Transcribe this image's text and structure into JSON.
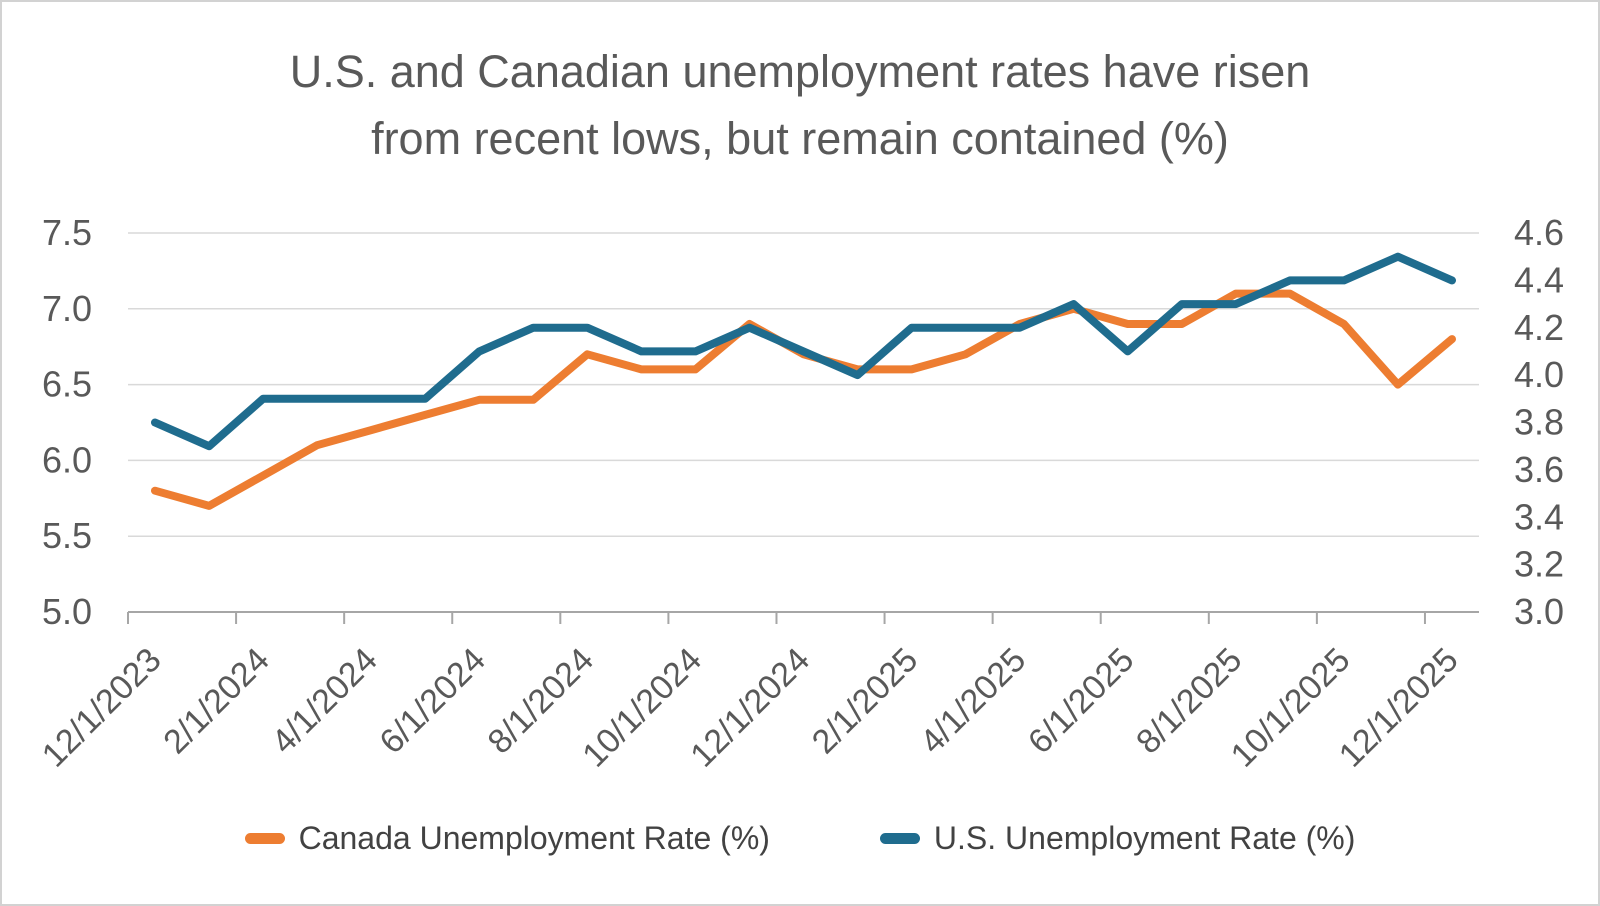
{
  "title": {
    "line1": "U.S. and Canadian unemployment rates have risen",
    "line2": "from recent lows, but remain contained (%)"
  },
  "colors": {
    "canada_line": "#ED7D31",
    "us_line": "#1F6C8E",
    "title_text": "#595959",
    "axis_text": "#595959",
    "gridline": "#D9D9D9",
    "axis_line": "#A6A6A6",
    "legend_text": "#424242",
    "background": "#FFFFFF"
  },
  "legend": {
    "items": [
      {
        "label": "Canada Unemployment Rate (%)",
        "color": "#ED7D31"
      },
      {
        "label": "U.S. Unemployment Rate (%)",
        "color": "#1F6C8E"
      }
    ]
  },
  "chart_data": {
    "type": "line",
    "x": [
      "12/1/2023",
      "1/1/2024",
      "2/1/2024",
      "3/1/2024",
      "4/1/2024",
      "5/1/2024",
      "6/1/2024",
      "7/1/2024",
      "8/1/2024",
      "9/1/2024",
      "10/1/2024",
      "11/1/2024",
      "12/1/2024",
      "1/1/2025",
      "2/1/2025",
      "3/1/2025",
      "4/1/2025",
      "5/1/2025",
      "6/1/2025",
      "7/1/2025",
      "8/1/2025",
      "9/1/2025",
      "10/1/2025",
      "11/1/2025",
      "12/1/2025"
    ],
    "x_tick_labels": [
      "12/1/2023",
      "2/1/2024",
      "4/1/2024",
      "6/1/2024",
      "8/1/2024",
      "10/1/2024",
      "12/1/2024",
      "2/1/2025",
      "4/1/2025",
      "6/1/2025",
      "8/1/2025",
      "10/1/2025",
      "12/1/2025"
    ],
    "x_tick_every": 2,
    "series": [
      {
        "name": "Canada Unemployment Rate (%)",
        "axis": "left",
        "color": "#ED7D31",
        "values": [
          5.8,
          5.7,
          5.9,
          6.1,
          6.2,
          6.3,
          6.4,
          6.4,
          6.7,
          6.6,
          6.6,
          6.9,
          6.7,
          6.6,
          6.6,
          6.7,
          6.9,
          7.0,
          6.9,
          6.9,
          7.1,
          7.1,
          6.9,
          6.5,
          6.8
        ]
      },
      {
        "name": "U.S. Unemployment Rate (%)",
        "axis": "right",
        "color": "#1F6C8E",
        "values": [
          3.8,
          3.7,
          3.9,
          3.9,
          3.9,
          3.9,
          4.1,
          4.2,
          4.2,
          4.1,
          4.1,
          4.2,
          4.1,
          4.0,
          4.2,
          4.2,
          4.2,
          4.3,
          4.1,
          4.3,
          4.3,
          4.4,
          4.4,
          4.5,
          4.4
        ]
      }
    ],
    "left_axis": {
      "min": 5.0,
      "max": 7.5,
      "tick_labels": [
        "7.5",
        "7.0",
        "6.5",
        "6.0",
        "5.5",
        "5.0"
      ]
    },
    "right_axis": {
      "min": 3.0,
      "max": 4.6,
      "tick_labels": [
        "4.6",
        "4.4",
        "4.2",
        "4.0",
        "3.8",
        "3.6",
        "3.4",
        "3.2",
        "3.0"
      ]
    },
    "grid": "horizontal",
    "legend_position": "bottom",
    "title": "U.S. and Canadian unemployment rates have risen from recent lows, but remain contained (%)"
  }
}
